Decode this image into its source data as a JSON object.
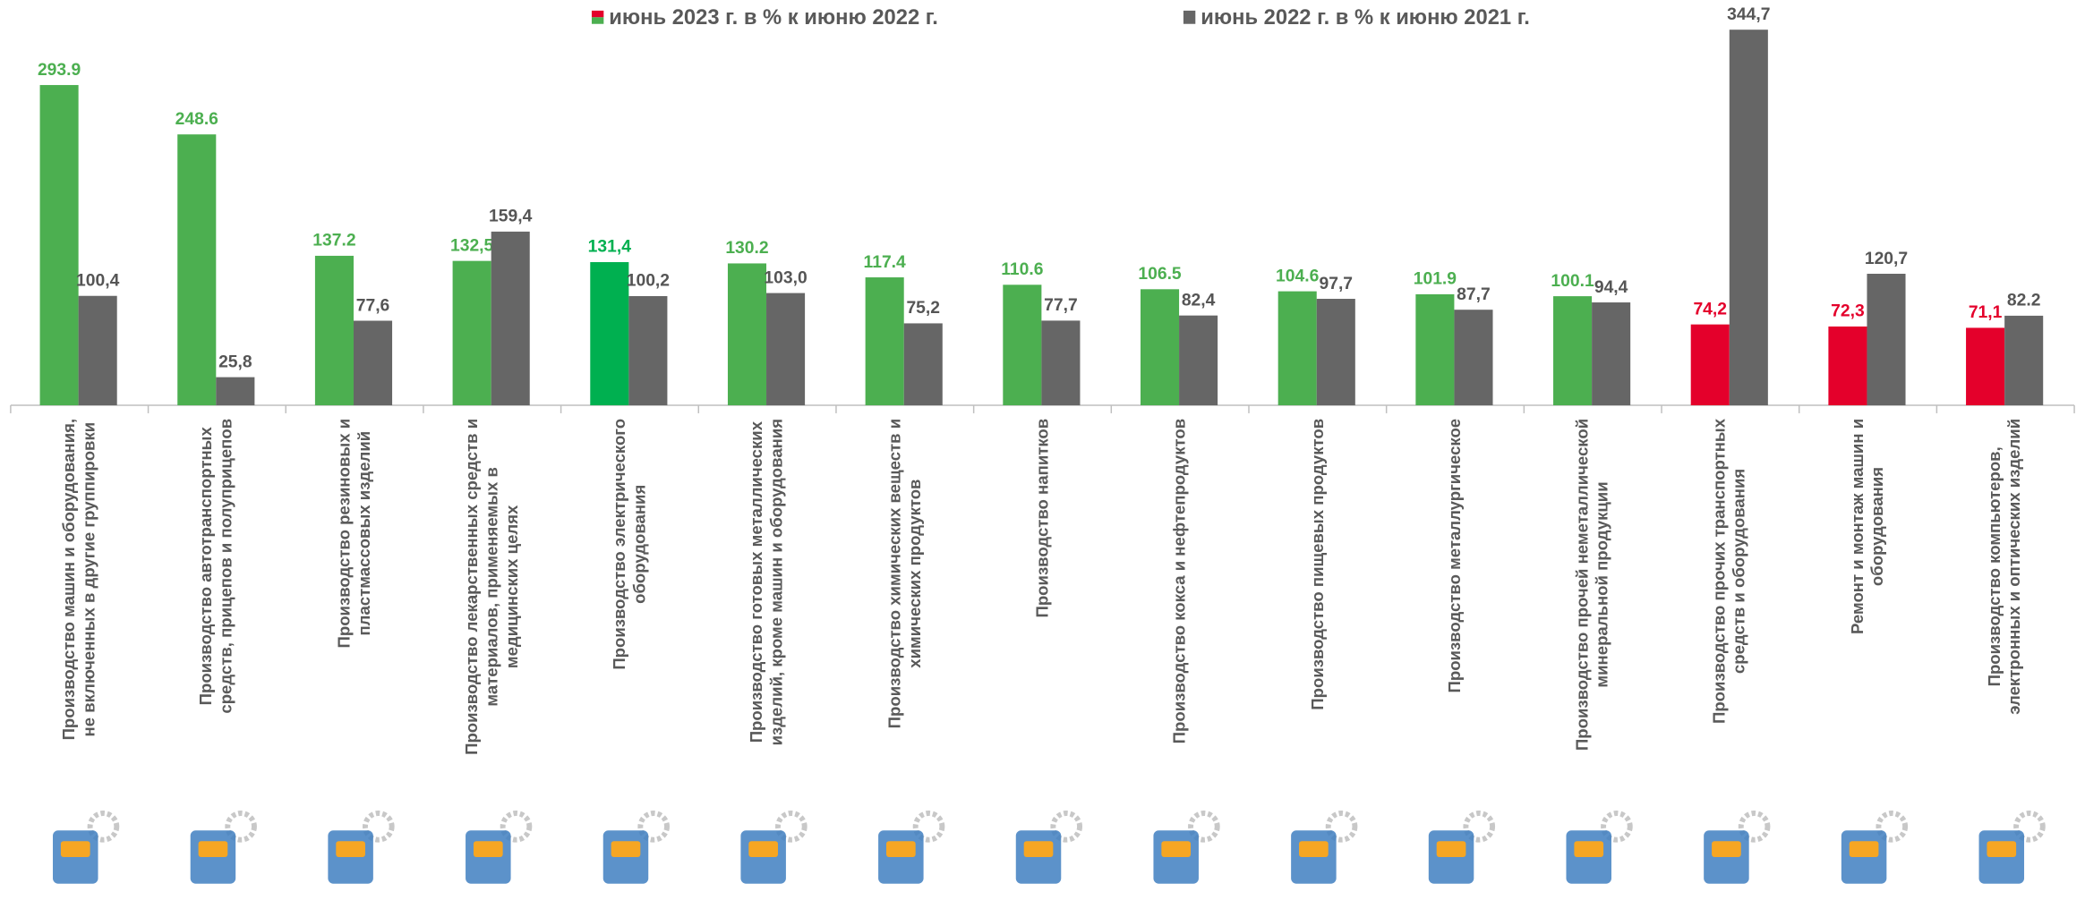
{
  "chart_data": {
    "type": "bar",
    "categories": [
      "Производство машин и оборудования,\nне включенных в другие группировки",
      "Производство автотранспортных\nсредств, прицепов и полуприцепов",
      "Производство резиновых и\nпластмассовых изделий",
      "Производство лекарственных средств и\nматериалов, применяемых в\nмедицинских целях",
      "Производство электрического\nоборудования",
      "Производство готовых металлических\nизделий, кроме машин и оборудования",
      "Производство химических веществ и\nхимических продуктов",
      "Производство напитков",
      "Производство кокса и нефтепродуктов",
      "Производство пищевых продуктов",
      "Производство металлургическое",
      "Производство прочей неметаллической\nминеральной продукции",
      "Производство прочих транспортных\nсредств и оборудования",
      "Ремонт и монтаж машин и\nоборудования",
      "Производство компьютеров,\nэлектронных и оптических изделий"
    ],
    "series": [
      {
        "name": "июнь 2023 г. в % к июню 2022 г.",
        "color": "#4caf50",
        "label_color": "#4caf50",
        "bar_colors": [
          "#4caf50",
          "#4caf50",
          "#4caf50",
          "#4caf50",
          "#00b050",
          "#4caf50",
          "#4caf50",
          "#4caf50",
          "#4caf50",
          "#4caf50",
          "#4caf50",
          "#4caf50",
          "#e4002b",
          "#e4002b",
          "#e4002b"
        ],
        "values": [
          293.9,
          248.6,
          137.2,
          132.5,
          131.4,
          130.2,
          117.4,
          110.6,
          106.5,
          104.6,
          101.9,
          100.1,
          74.2,
          72.3,
          71.1
        ],
        "value_labels": [
          "293.9",
          "248.6",
          "137.2",
          "132,5",
          "131,4",
          "130.2",
          "117.4",
          "110.6",
          "106.5",
          "104.6",
          "101.9",
          "100.1",
          "74,2",
          "72,3",
          "71,1"
        ]
      },
      {
        "name": "июнь 2022 г. в % к июню 2021 г.",
        "color": "#666666",
        "label_color": "#555555",
        "values": [
          100.4,
          25.8,
          77.6,
          159.4,
          100.2,
          103.0,
          75.2,
          77.7,
          82.4,
          97.7,
          87.7,
          94.4,
          344.7,
          120.7,
          82.2
        ],
        "value_labels": [
          "100,4",
          "25,8",
          "77,6",
          "159,4",
          "100,2",
          "103,0",
          "75,2",
          "77,7",
          "82,4",
          "97,7",
          "87,7",
          "94,4",
          "344,7",
          "120,7",
          "82.2"
        ]
      }
    ],
    "ylim": [
      0,
      350
    ],
    "grid": false
  }
}
